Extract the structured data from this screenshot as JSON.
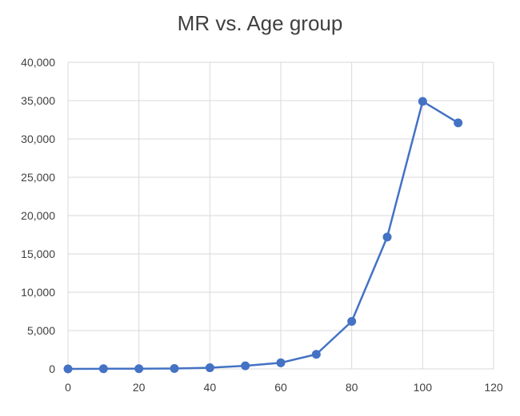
{
  "chart_data": {
    "type": "scatter",
    "title": "MR vs. Age group",
    "xlabel": "",
    "ylabel": "",
    "xlim": [
      0,
      120
    ],
    "ylim": [
      0,
      40000
    ],
    "x_ticks": [
      "0",
      "20",
      "40",
      "60",
      "80",
      "100",
      "120"
    ],
    "y_ticks": [
      "0",
      "5,000",
      "10,000",
      "15,000",
      "20,000",
      "25,000",
      "30,000",
      "35,000",
      "40,000"
    ],
    "grid": true,
    "legend": "none",
    "series": [
      {
        "color": "#4472c4",
        "x": [
          0,
          10,
          20,
          30,
          40,
          50,
          60,
          70,
          80,
          90,
          100,
          110
        ],
        "y": [
          0,
          20,
          30,
          50,
          150,
          400,
          800,
          1900,
          6200,
          17200,
          34900,
          32100
        ]
      }
    ]
  }
}
